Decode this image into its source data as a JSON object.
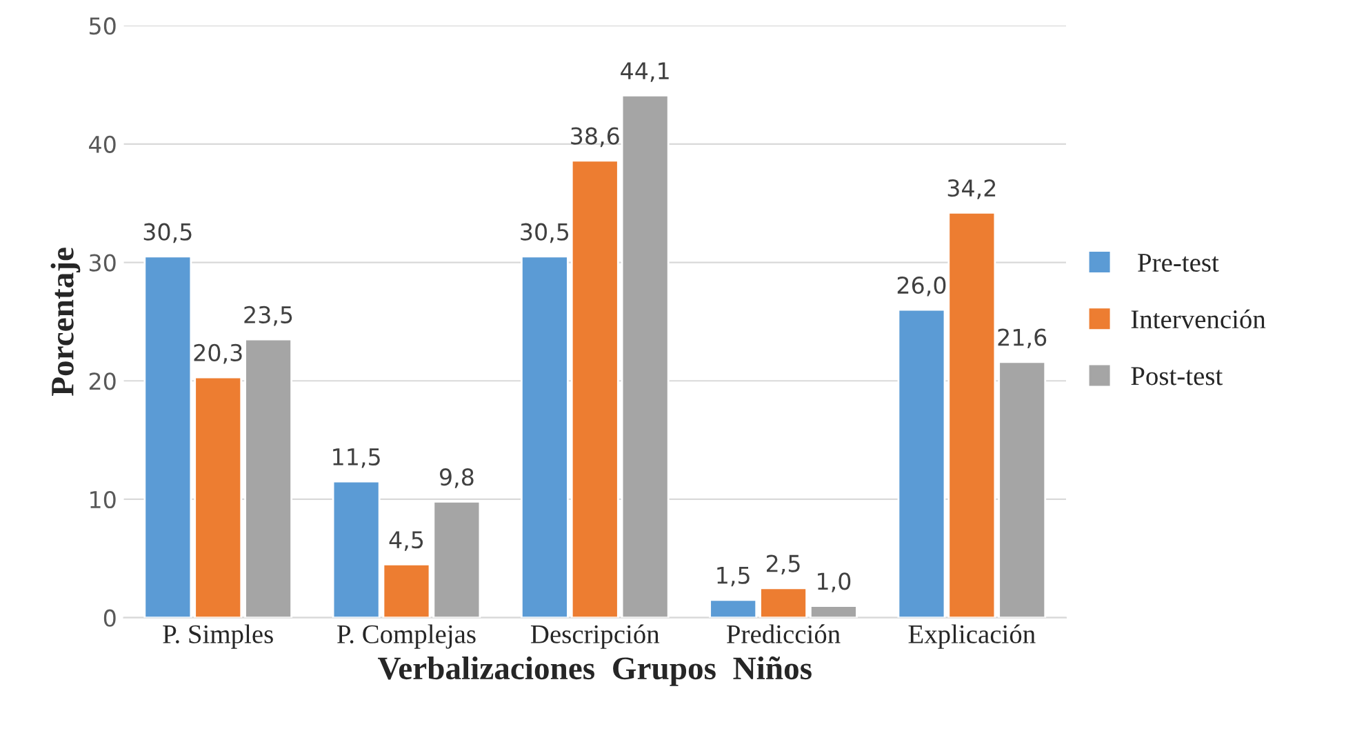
{
  "chart_data": {
    "type": "bar",
    "xlabel": "Verbalizaciones  Grupos  Niños",
    "ylabel": "Porcentaje",
    "categories": [
      "P. Simples",
      "P. Complejas",
      "Descripción",
      "Predicción",
      "Explicación"
    ],
    "series": [
      {
        "name": " Pre-test",
        "color": "#5b9bd5",
        "values": [
          30.5,
          11.5,
          30.5,
          1.5,
          26.0
        ],
        "value_labels": [
          "30,5",
          "11,5",
          "30,5",
          "1,5",
          "26,0"
        ]
      },
      {
        "name": "Intervención",
        "color": "#ed7d31",
        "values": [
          20.3,
          4.5,
          38.6,
          2.5,
          34.2
        ],
        "value_labels": [
          "20,3",
          "4,5",
          "38,6",
          "2,5",
          "34,2"
        ]
      },
      {
        "name": "Post-test",
        "color": "#a5a5a5",
        "values": [
          23.5,
          9.8,
          44.1,
          1.0,
          21.6
        ],
        "value_labels": [
          "23,5",
          "9,8",
          "44,1",
          "1,0",
          "21,6"
        ]
      }
    ],
    "ylim": [
      0,
      50
    ],
    "yticks": [
      0,
      10,
      20,
      30,
      40,
      50
    ],
    "grid": "y",
    "legend": "right"
  }
}
